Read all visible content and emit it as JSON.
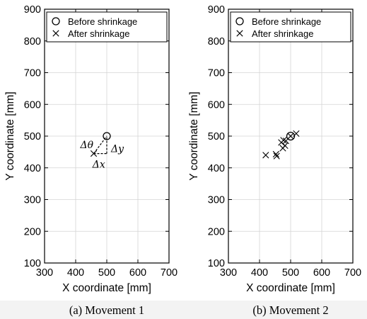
{
  "chart_data": [
    {
      "type": "scatter",
      "caption": "(a) Movement 1",
      "xlabel": "X coordinate [mm]",
      "ylabel": "Y coordinate [mm]",
      "xlim": [
        300,
        700
      ],
      "ylim": [
        100,
        900
      ],
      "xticks": [
        300,
        400,
        500,
        600,
        700
      ],
      "yticks": [
        100,
        200,
        300,
        400,
        500,
        600,
        700,
        800,
        900
      ],
      "grid": true,
      "legend": "top",
      "series": [
        {
          "name": "Before shrinkage",
          "marker": "circle",
          "points": [
            [
              500,
              500
            ]
          ]
        },
        {
          "name": "After shrinkage",
          "marker": "x",
          "points": [
            [
              458,
              445
            ]
          ]
        }
      ],
      "annotations": [
        "Δθ",
        "Δy",
        "Δx"
      ]
    },
    {
      "type": "scatter",
      "caption": "(b) Movement 2",
      "xlabel": "X coordinate [mm]",
      "ylabel": "Y coordinate [mm]",
      "xlim": [
        300,
        700
      ],
      "ylim": [
        100,
        900
      ],
      "xticks": [
        300,
        400,
        500,
        600,
        700
      ],
      "yticks": [
        100,
        200,
        300,
        400,
        500,
        600,
        700,
        800,
        900
      ],
      "grid": true,
      "legend": "top",
      "series": [
        {
          "name": "Before shrinkage",
          "marker": "circle",
          "points": [
            [
              500,
              500
            ]
          ]
        },
        {
          "name": "After shrinkage",
          "marker": "x",
          "points": [
            [
              420,
              440
            ],
            [
              453,
              443
            ],
            [
              455,
              437
            ],
            [
              470,
              480
            ],
            [
              477,
              487
            ],
            [
              482,
              470
            ],
            [
              485,
              485
            ],
            [
              475,
              462
            ],
            [
              500,
              500
            ],
            [
              518,
              508
            ]
          ]
        }
      ]
    }
  ]
}
